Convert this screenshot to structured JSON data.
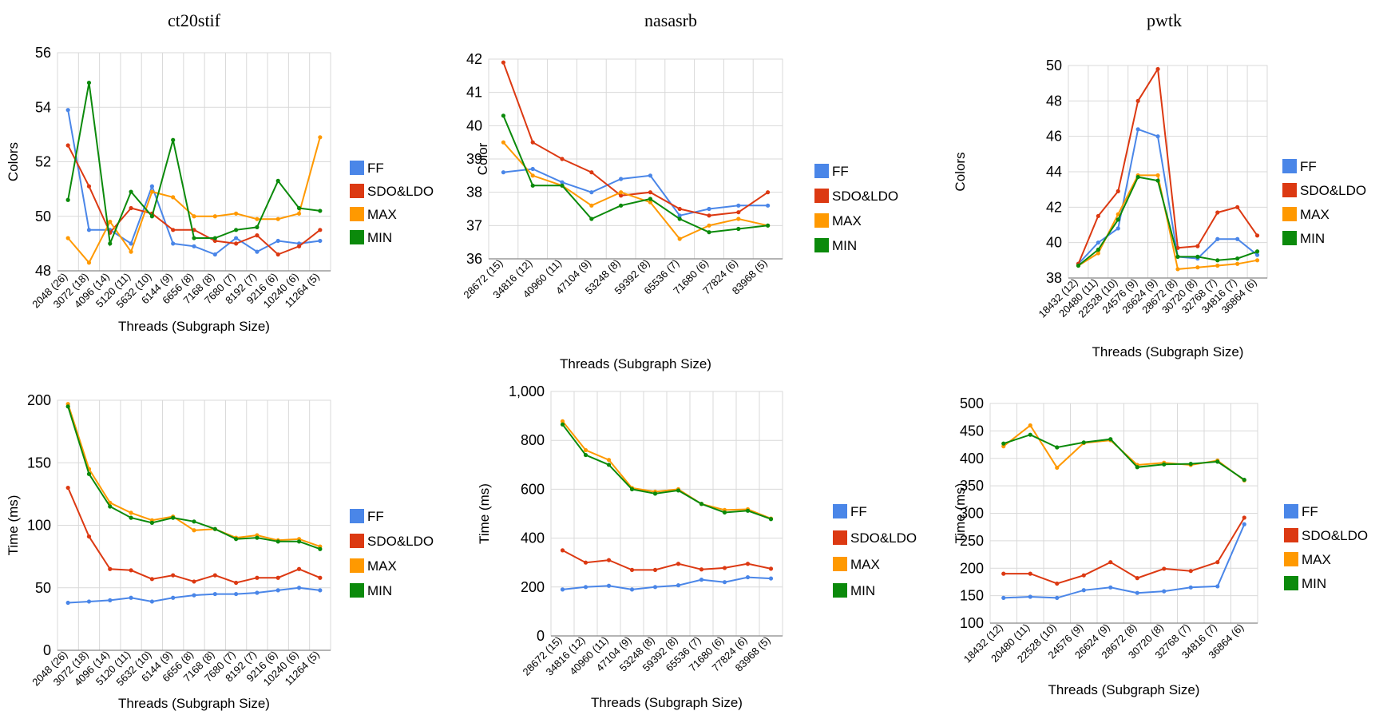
{
  "colors": {
    "FF": "#4a86e8",
    "SDO&LDO": "#dc3912",
    "MAX": "#ff9900",
    "MIN": "#0b8a0b",
    "grid": "#d9d9d9",
    "axis": "#888888"
  },
  "legend": [
    "FF",
    "SDO&LDO",
    "MAX",
    "MIN"
  ],
  "chart_data": [
    {
      "type": "line",
      "title": "ct20stif",
      "xlabel": "Threads (Subgraph Size)",
      "ylabel": "Colors",
      "ylim": [
        48,
        56
      ],
      "yticks": [
        48,
        50,
        52,
        54,
        56
      ],
      "grid": true,
      "legend_position": "right",
      "categories": [
        "2048 (26)",
        "3072 (18)",
        "4096 (14)",
        "5120 (11)",
        "5632 (10)",
        "6144 (9)",
        "6656 (8)",
        "7168 (8)",
        "7680 (7)",
        "8192 (7)",
        "9216 (6)",
        "10240 (6)",
        "11264 (5)"
      ],
      "series": [
        {
          "name": "FF",
          "values": [
            53.9,
            49.5,
            49.5,
            49.0,
            51.1,
            49.0,
            48.9,
            48.6,
            49.2,
            48.7,
            49.1,
            49.0,
            49.1
          ]
        },
        {
          "name": "SDO&LDO",
          "values": [
            52.6,
            51.1,
            49.4,
            50.3,
            50.1,
            49.5,
            49.5,
            49.1,
            49.0,
            49.3,
            48.6,
            48.9,
            49.5
          ]
        },
        {
          "name": "MAX",
          "values": [
            49.2,
            48.3,
            49.8,
            48.7,
            50.9,
            50.7,
            50.0,
            50.0,
            50.1,
            49.9,
            49.9,
            50.1,
            52.9
          ]
        },
        {
          "name": "MIN",
          "values": [
            50.6,
            54.9,
            49.0,
            50.9,
            50.0,
            52.8,
            49.2,
            49.2,
            49.5,
            49.6,
            51.3,
            50.3,
            50.2
          ]
        }
      ]
    },
    {
      "type": "line",
      "title": "nasasrb",
      "xlabel": "Threads (Subgraph Size)",
      "ylabel": "Color",
      "ylim": [
        36,
        42
      ],
      "yticks": [
        36,
        37,
        38,
        39,
        40,
        41,
        42
      ],
      "grid": true,
      "legend_position": "right",
      "categories": [
        "28672 (15)",
        "34816 (12)",
        "40960 (11)",
        "47104 (9)",
        "53248 (8)",
        "59392 (8)",
        "65536 (7)",
        "71680 (6)",
        "77824 (6)",
        "83968 (5)"
      ],
      "series": [
        {
          "name": "FF",
          "values": [
            38.6,
            38.7,
            38.3,
            38.0,
            38.4,
            38.5,
            37.3,
            37.5,
            37.6,
            37.6
          ]
        },
        {
          "name": "SDO&LDO",
          "values": [
            41.9,
            39.5,
            39.0,
            38.6,
            37.9,
            38.0,
            37.5,
            37.3,
            37.4,
            38.0
          ]
        },
        {
          "name": "MAX",
          "values": [
            39.5,
            38.5,
            38.2,
            37.6,
            38.0,
            37.7,
            36.6,
            37.0,
            37.2,
            37.0
          ]
        },
        {
          "name": "MIN",
          "values": [
            40.3,
            38.2,
            38.2,
            37.2,
            37.6,
            37.8,
            37.2,
            36.8,
            36.9,
            37.0
          ]
        }
      ]
    },
    {
      "type": "line",
      "title": "pwtk",
      "xlabel": "Threads (Subgraph Size)",
      "ylabel": "Colors",
      "ylim": [
        38,
        50
      ],
      "yticks": [
        38,
        40,
        42,
        44,
        46,
        48,
        50
      ],
      "grid": true,
      "legend_position": "right",
      "categories": [
        "18432 (12)",
        "20480 (11)",
        "22528 (10)",
        "24576 (9)",
        "26624 (9)",
        "28672 (8)",
        "30720 (8)",
        "32768 (7)",
        "34816 (7)",
        "36864 (6)"
      ],
      "series": [
        {
          "name": "FF",
          "values": [
            38.8,
            40.0,
            40.8,
            46.4,
            46.0,
            39.2,
            39.1,
            40.2,
            40.2,
            39.3
          ]
        },
        {
          "name": "SDO&LDO",
          "values": [
            38.8,
            41.5,
            42.9,
            48.0,
            49.8,
            39.7,
            39.8,
            41.7,
            42.0,
            40.4
          ]
        },
        {
          "name": "MAX",
          "values": [
            38.7,
            39.4,
            41.6,
            43.8,
            43.8,
            38.5,
            38.6,
            38.7,
            38.8,
            39.0
          ]
        },
        {
          "name": "MIN",
          "values": [
            38.7,
            39.6,
            41.3,
            43.7,
            43.5,
            39.2,
            39.2,
            39.0,
            39.1,
            39.5
          ]
        }
      ]
    },
    {
      "type": "line",
      "title": "",
      "xlabel": "Threads (Subgraph Size)",
      "ylabel": "Time (ms)",
      "ylim": [
        0,
        200
      ],
      "yticks": [
        0,
        50,
        100,
        150,
        200
      ],
      "grid": true,
      "legend_position": "right",
      "categories": [
        "2048 (26)",
        "3072 (18)",
        "4096 (14)",
        "5120 (11)",
        "5632 (10)",
        "6144 (9)",
        "6656 (8)",
        "7168 (8)",
        "7680 (7)",
        "8192 (7)",
        "9216 (6)",
        "10240 (6)",
        "11264 (5)"
      ],
      "series": [
        {
          "name": "FF",
          "values": [
            38,
            39,
            40,
            42,
            39,
            42,
            44,
            45,
            45,
            46,
            48,
            50,
            48
          ]
        },
        {
          "name": "SDO&LDO",
          "values": [
            130,
            91,
            65,
            64,
            57,
            60,
            55,
            60,
            54,
            58,
            58,
            65,
            58
          ]
        },
        {
          "name": "MAX",
          "values": [
            197,
            145,
            118,
            110,
            104,
            107,
            96,
            97,
            90,
            92,
            88,
            89,
            83
          ]
        },
        {
          "name": "MIN",
          "values": [
            195,
            141,
            115,
            106,
            102,
            106,
            103,
            97,
            89,
            90,
            87,
            87,
            81
          ]
        }
      ]
    },
    {
      "type": "line",
      "title": "",
      "xlabel": "Threads (Subgraph Size)",
      "ylabel": "Time (ms)",
      "ylim": [
        0,
        1000
      ],
      "yticks": [
        0,
        200,
        400,
        600,
        800,
        1000
      ],
      "ytick_labels": [
        "0",
        "200",
        "400",
        "600",
        "800",
        "1,000"
      ],
      "grid": true,
      "legend_position": "right",
      "categories": [
        "28672 (15)",
        "34816 (12)",
        "40960 (11)",
        "47104 (9)",
        "53248 (8)",
        "59392 (8)",
        "65536 (7)",
        "71680 (6)",
        "77824 (6)",
        "83968 (5)"
      ],
      "series": [
        {
          "name": "FF",
          "values": [
            190,
            200,
            205,
            190,
            200,
            207,
            230,
            220,
            240,
            235
          ]
        },
        {
          "name": "SDO&LDO",
          "values": [
            350,
            300,
            310,
            270,
            270,
            295,
            272,
            278,
            295,
            275
          ]
        },
        {
          "name": "MAX",
          "values": [
            878,
            760,
            720,
            605,
            590,
            600,
            540,
            515,
            518,
            480
          ]
        },
        {
          "name": "MIN",
          "values": [
            865,
            740,
            700,
            600,
            582,
            595,
            540,
            505,
            512,
            478
          ]
        }
      ]
    },
    {
      "type": "line",
      "title": "",
      "xlabel": "Threads (Subgraph Size)",
      "ylabel": "Time (ms)",
      "ylim": [
        100,
        500
      ],
      "yticks": [
        100,
        150,
        200,
        250,
        300,
        350,
        400,
        450,
        500
      ],
      "grid": true,
      "legend_position": "right",
      "categories": [
        "18432 (12)",
        "20480 (11)",
        "22528 (10)",
        "24576 (9)",
        "26624 (9)",
        "28672 (8)",
        "30720 (8)",
        "32768 (7)",
        "34816 (7)",
        "36864 (6)"
      ],
      "series": [
        {
          "name": "FF",
          "values": [
            146,
            148,
            146,
            160,
            165,
            155,
            158,
            165,
            167,
            280
          ]
        },
        {
          "name": "SDO&LDO",
          "values": [
            190,
            190,
            172,
            187,
            211,
            182,
            199,
            195,
            211,
            292
          ]
        },
        {
          "name": "MAX",
          "values": [
            422,
            460,
            383,
            428,
            433,
            388,
            392,
            388,
            396,
            360
          ]
        },
        {
          "name": "MIN",
          "values": [
            427,
            443,
            420,
            429,
            435,
            384,
            389,
            390,
            394,
            361
          ]
        }
      ]
    }
  ]
}
